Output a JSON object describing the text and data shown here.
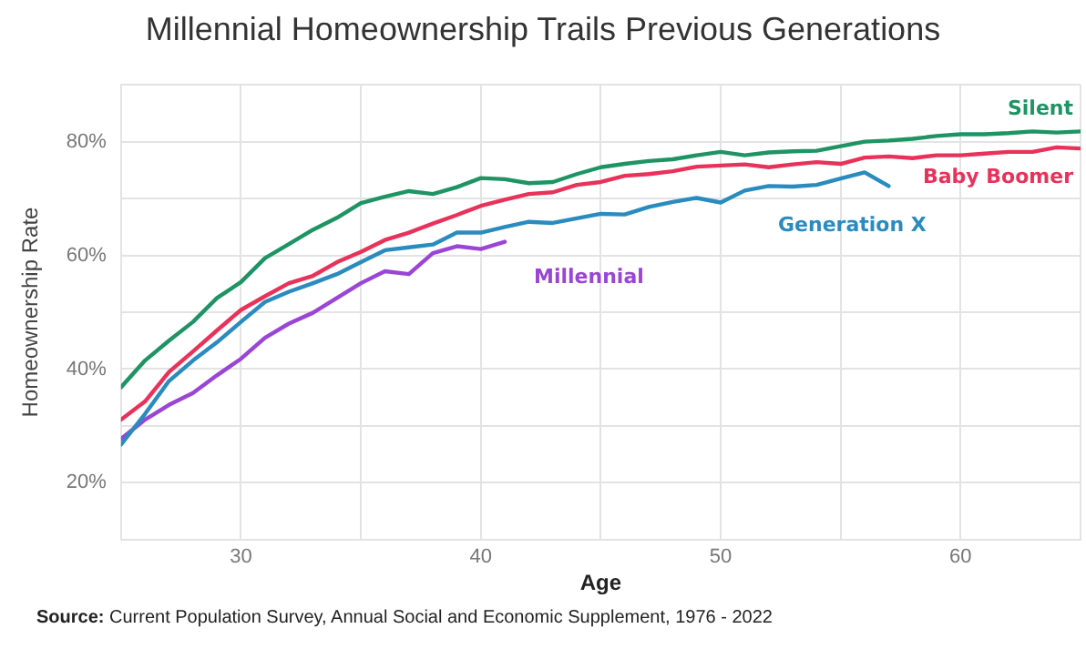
{
  "chart_data": {
    "type": "line",
    "title": "Millennial Homeownership Trails Previous Generations",
    "xlabel": "Age",
    "ylabel": "Homeownership Rate",
    "annotations": [
      "Source: Current Population Survey, Annual Social and Economic Supplement, 1976 - 2022"
    ],
    "x": [
      25,
      26,
      27,
      28,
      29,
      30,
      31,
      32,
      33,
      34,
      35,
      36,
      37,
      38,
      39,
      40,
      41,
      42,
      43,
      44,
      45,
      46,
      47,
      48,
      49,
      50,
      51,
      52,
      53,
      54,
      55,
      56,
      57,
      58,
      59,
      60,
      61,
      62,
      63,
      64,
      65
    ],
    "series": [
      {
        "name": "Silent",
        "color": "#1e9464",
        "values": [
          36.8,
          41.5,
          45,
          48.3,
          52.5,
          55.3,
          59.5,
          62,
          64.5,
          66.6,
          69.2,
          70.3,
          71.3,
          70.8,
          72,
          73.6,
          73.4,
          72.7,
          72.9,
          74.3,
          75.5,
          76.1,
          76.6,
          76.9,
          77.6,
          78.2,
          77.6,
          78.1,
          78.3,
          78.4,
          79.2,
          80,
          80.2,
          80.5,
          81,
          81.3,
          81.3,
          81.5,
          81.8,
          81.6,
          81.8
        ]
      },
      {
        "name": "Baby Boomer",
        "color": "#e8325a",
        "values": [
          31.1,
          34.3,
          39.5,
          43.1,
          46.8,
          50.4,
          52.8,
          55.1,
          56.4,
          58.8,
          60.6,
          62.7,
          64,
          65.6,
          67.1,
          68.7,
          69.8,
          70.8,
          71.1,
          72.4,
          72.9,
          74,
          74.3,
          74.8,
          75.6,
          75.8,
          76,
          75.5,
          76,
          76.4,
          76.1,
          77.2,
          77.4,
          77.1,
          77.6,
          77.6,
          77.9,
          78.2,
          78.2,
          79,
          78.8
        ]
      },
      {
        "name": "Generation X",
        "color": "#2a8bbf",
        "x": [
          25,
          26,
          27,
          28,
          29,
          30,
          31,
          32,
          33,
          34,
          35,
          36,
          37,
          38,
          39,
          40,
          41,
          42,
          43,
          44,
          45,
          46,
          47,
          48,
          49,
          50,
          51,
          52,
          53,
          54,
          55,
          56,
          57
        ],
        "values": [
          26.7,
          32.1,
          37.9,
          41.5,
          44.7,
          48.3,
          51.8,
          53.6,
          55.1,
          56.7,
          58.8,
          60.9,
          61.4,
          61.9,
          64,
          64,
          65,
          65.9,
          65.7,
          66.5,
          67.3,
          67.2,
          68.5,
          69.4,
          70.1,
          69.3,
          71.4,
          72.2,
          72.1,
          72.4,
          73.5,
          74.6,
          72.2
        ]
      },
      {
        "name": "Millennial",
        "color": "#9a45d6",
        "x": [
          25,
          26,
          27,
          28,
          29,
          30,
          31,
          32,
          33,
          34,
          35,
          36,
          37,
          38,
          39,
          40,
          41
        ],
        "values": [
          27.7,
          31.1,
          33.7,
          35.8,
          38.9,
          41.8,
          45.5,
          48,
          49.9,
          52.5,
          55.1,
          57.2,
          56.7,
          60.4,
          61.6,
          61.1,
          62.4
        ]
      }
    ],
    "xlim": [
      25,
      65
    ],
    "xticks": [
      {
        "value": 25,
        "label": null
      },
      30,
      {
        "value": 35,
        "label": null
      },
      40,
      {
        "value": 45,
        "label": null
      },
      50,
      {
        "value": 55,
        "label": null
      },
      60,
      {
        "value": 65,
        "label": null
      }
    ],
    "ylim": [
      10,
      90
    ],
    "yticks": [
      {
        "value": 10,
        "label": null
      },
      {
        "value": 20,
        "label": "20%"
      },
      {
        "value": 30,
        "label": null
      },
      {
        "value": 40,
        "label": "40%"
      },
      {
        "value": 50,
        "label": null
      },
      {
        "value": 60,
        "label": "60%"
      },
      {
        "value": 70,
        "label": null
      },
      {
        "value": 80,
        "label": "80%"
      },
      {
        "value": 90,
        "label": null
      }
    ],
    "grid": true,
    "legend": false,
    "marker": "none",
    "line_style": "solid"
  }
}
